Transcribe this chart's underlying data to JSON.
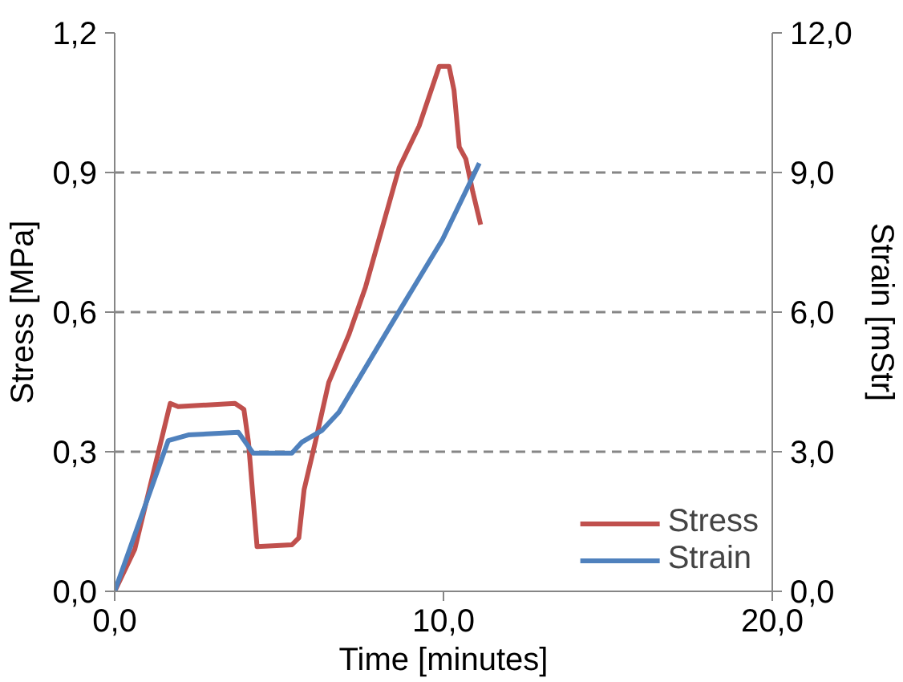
{
  "chart_data": {
    "type": "line",
    "xlabel": "Time [minutes]",
    "ylabel": "Stress [MPa]",
    "y2label": "Strain [mStr]",
    "xlim": [
      0,
      20
    ],
    "xticks": [
      {
        "value": 0,
        "label": "0,0"
      },
      {
        "value": 10,
        "label": "10,0"
      },
      {
        "value": 20,
        "label": "20,0"
      }
    ],
    "ylim": [
      0,
      1.2
    ],
    "yticks": [
      {
        "value": 0,
        "label": "0,0"
      },
      {
        "value": 0.3,
        "label": "0,3"
      },
      {
        "value": 0.6,
        "label": "0,6"
      },
      {
        "value": 0.9,
        "label": "0,9"
      },
      {
        "value": 1.2,
        "label": "1,2"
      }
    ],
    "y2lim": [
      0,
      12
    ],
    "y2ticks": [
      {
        "value": 0,
        "label": "0,0"
      },
      {
        "value": 3,
        "label": "3,0"
      },
      {
        "value": 6,
        "label": "6,0"
      },
      {
        "value": 9,
        "label": "9,0"
      },
      {
        "value": 12,
        "label": "12,0"
      }
    ],
    "grid": "y",
    "legend": "bottom right",
    "marker": "none",
    "line_style": "solid",
    "series": [
      {
        "name": "Stress",
        "color": "#c0504d",
        "x": [
          0,
          0.61,
          1.69,
          1.93,
          3.66,
          3.93,
          4.07,
          4.33,
          5.39,
          5.6,
          5.76,
          6.1,
          6.51,
          7.12,
          7.63,
          8.65,
          9.26,
          9.87,
          10.17,
          10.32,
          10.48,
          10.68,
          10.89,
          11.13
        ],
        "values": [
          0,
          0.09,
          0.404,
          0.397,
          0.404,
          0.391,
          0.32,
          0.096,
          0.1,
          0.115,
          0.218,
          0.32,
          0.449,
          0.551,
          0.654,
          0.91,
          1.0,
          1.128,
          1.128,
          1.077,
          0.955,
          0.929,
          0.859,
          0.788
        ]
      },
      {
        "name": "Strain",
        "color": "#4f81bd",
        "axis": "y2",
        "x": [
          0,
          1.63,
          2.24,
          3.76,
          4.21,
          5.39,
          5.7,
          6.31,
          6.82,
          8.44,
          9.97,
          11.09
        ],
        "values": [
          0,
          3.24,
          3.36,
          3.42,
          2.97,
          2.97,
          3.21,
          3.46,
          3.85,
          5.77,
          7.56,
          9.2
        ]
      }
    ]
  }
}
